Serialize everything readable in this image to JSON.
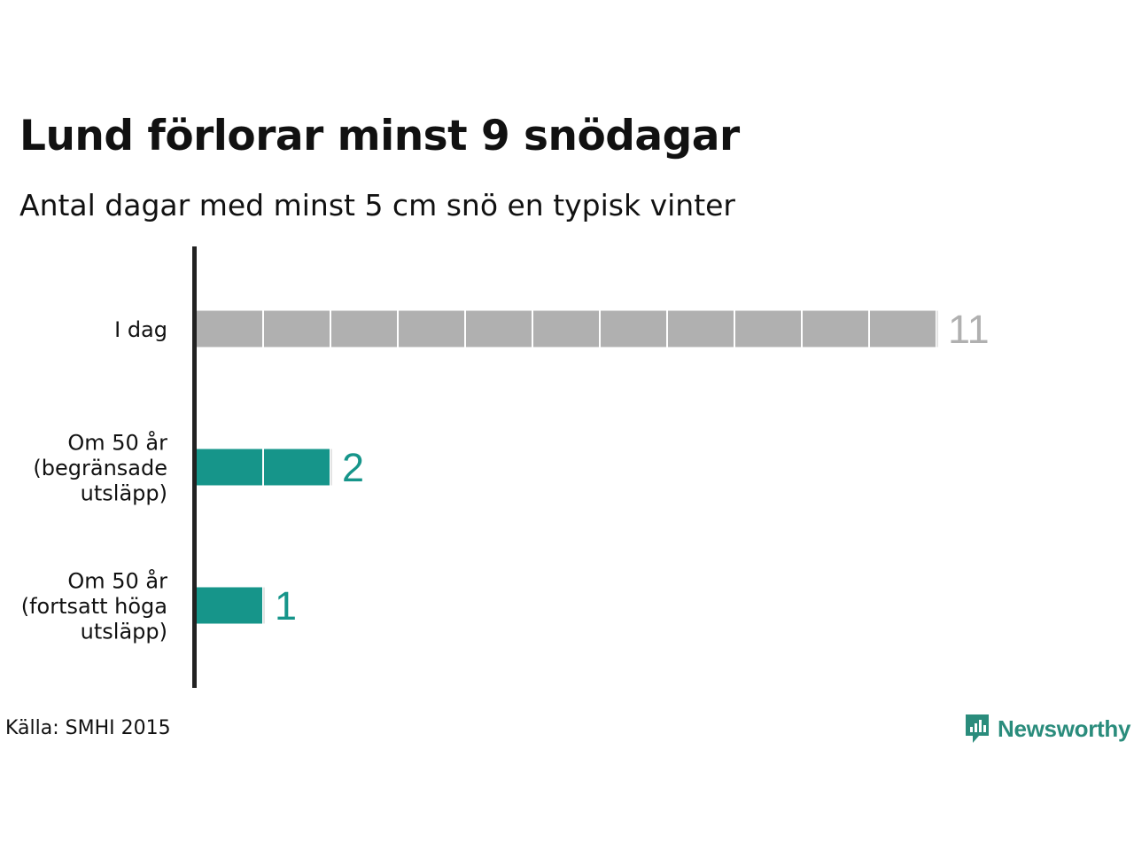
{
  "title": "Lund förlorar minst 9 snödagar",
  "subtitle": "Antal dagar med minst 5 cm snö en typisk vinter",
  "source": "Källa: SMHI 2015",
  "brand": {
    "name": "Newsworthy",
    "icon": "newsworthy-logo-icon",
    "color": "#2a8c7c"
  },
  "colors": {
    "today": "#b0b0b0",
    "future": "#16958a",
    "axis": "#222222"
  },
  "chart_data": {
    "type": "bar",
    "orientation": "horizontal",
    "title": "Lund förlorar minst 9 snödagar",
    "subtitle": "Antal dagar med minst 5 cm snö en typisk vinter",
    "categories": [
      [
        "I dag"
      ],
      [
        "Om 50 år",
        "(begränsade",
        "utsläpp)"
      ],
      [
        "Om 50 år",
        "(fortsatt höga",
        "utsläpp)"
      ]
    ],
    "values": [
      11,
      2,
      1
    ],
    "value_labels": [
      "11",
      "2",
      "1"
    ],
    "bar_colors": [
      "#b0b0b0",
      "#16958a",
      "#16958a"
    ],
    "segmented": true,
    "grid": false,
    "legend": "none"
  }
}
